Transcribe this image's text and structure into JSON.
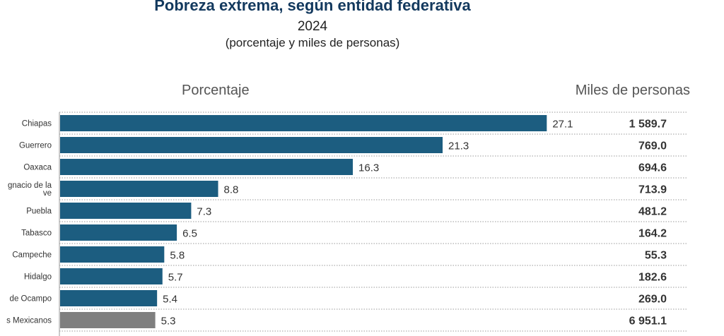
{
  "header": {
    "title": "Pobreza extrema, según entidad federativa",
    "year": "2024",
    "subtitle": "(porcentaje y miles de personas)",
    "col_left": "Porcentaje",
    "col_right": "Miles de personas"
  },
  "colors": {
    "bar": "#1c5d80",
    "bar_highlight": "#7f7f7f",
    "title": "#13395e"
  },
  "chart_data": {
    "type": "bar",
    "orientation": "horizontal",
    "categories": [
      "Chiapas",
      "Guerrero",
      "Oaxaca",
      "gnacio de la ve",
      "Puebla",
      "Tabasco",
      "Campeche",
      "Hidalgo",
      "de Ocampo",
      "s Mexicanos"
    ],
    "category_lines": [
      [
        "Chiapas"
      ],
      [
        "Guerrero"
      ],
      [
        "Oaxaca"
      ],
      [
        "gnacio de la",
        "ve"
      ],
      [
        "Puebla"
      ],
      [
        "Tabasco"
      ],
      [
        "Campeche"
      ],
      [
        "Hidalgo"
      ],
      [
        "de Ocampo"
      ],
      [
        "s Mexicanos"
      ]
    ],
    "series": [
      {
        "name": "Porcentaje",
        "values": [
          27.1,
          21.3,
          16.3,
          8.8,
          7.3,
          6.5,
          5.8,
          5.7,
          5.4,
          5.3
        ],
        "labels": [
          "27.1",
          "21.3",
          "16.3",
          "8.8",
          "7.3",
          "6.5",
          "5.8",
          "5.7",
          "5.4",
          "5.3"
        ]
      },
      {
        "name": "Miles de personas",
        "values": [
          1589.7,
          769.0,
          694.6,
          713.9,
          481.2,
          164.2,
          55.3,
          182.6,
          269.0,
          6951.1
        ],
        "labels": [
          "1 589.7",
          "769.0",
          "694.6",
          "713.9",
          "481.2",
          "164.2",
          "55.3",
          "182.6",
          "269.0",
          "6 951.1"
        ]
      }
    ],
    "highlight_index": 9,
    "grid": false
  }
}
